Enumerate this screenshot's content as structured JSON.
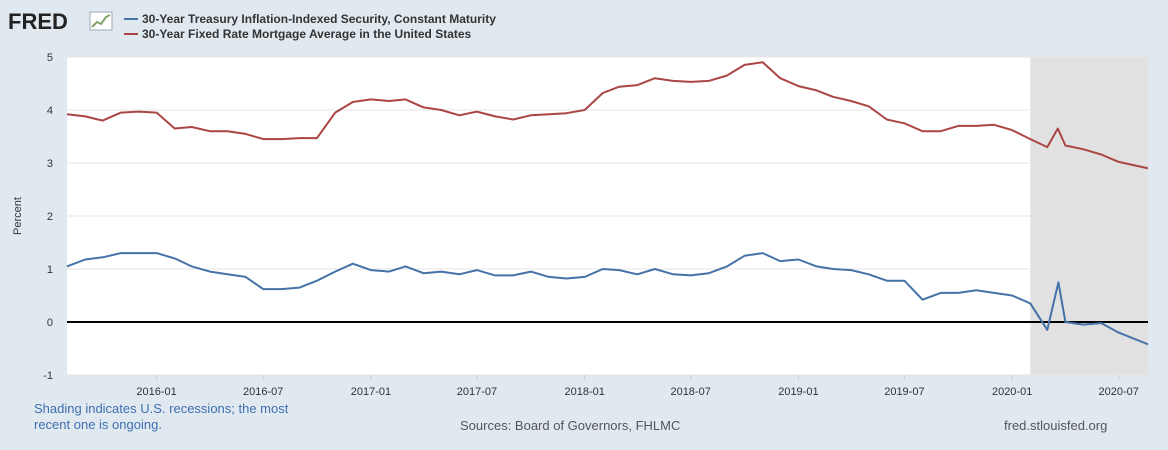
{
  "logo": {
    "text": "FRED"
  },
  "chart_data": {
    "type": "line",
    "title": "",
    "xlabel": "",
    "ylabel": "Percent",
    "ylim": [
      -1,
      5
    ],
    "xlim": [
      "2015-08-01",
      "2020-08-20"
    ],
    "yticks": [
      -1,
      0,
      1,
      2,
      3,
      4,
      5
    ],
    "xticks": [
      "2016-01",
      "2016-07",
      "2017-01",
      "2017-07",
      "2018-01",
      "2018-07",
      "2019-01",
      "2019-07",
      "2020-01",
      "2020-07"
    ],
    "recession": {
      "start": "2020-02-01",
      "end": "2020-08-20",
      "label": "Shading indicates U.S. recessions; the most recent one is ongoing."
    },
    "zero_line": 0,
    "series": [
      {
        "name": "30-Year Treasury Inflation-Indexed Security, Constant Maturity",
        "color": "#4572a7",
        "points": [
          [
            "2015-08-01",
            1.05
          ],
          [
            "2015-09-01",
            1.18
          ],
          [
            "2015-10-01",
            1.22
          ],
          [
            "2015-11-01",
            1.3
          ],
          [
            "2015-12-01",
            1.3
          ],
          [
            "2016-01-01",
            1.3
          ],
          [
            "2016-02-01",
            1.2
          ],
          [
            "2016-03-01",
            1.05
          ],
          [
            "2016-04-01",
            0.95
          ],
          [
            "2016-05-01",
            0.9
          ],
          [
            "2016-06-01",
            0.85
          ],
          [
            "2016-07-01",
            0.62
          ],
          [
            "2016-08-01",
            0.62
          ],
          [
            "2016-09-01",
            0.65
          ],
          [
            "2016-10-01",
            0.78
          ],
          [
            "2016-11-01",
            0.95
          ],
          [
            "2016-12-01",
            1.1
          ],
          [
            "2017-01-01",
            0.98
          ],
          [
            "2017-02-01",
            0.95
          ],
          [
            "2017-03-01",
            1.05
          ],
          [
            "2017-04-01",
            0.92
          ],
          [
            "2017-05-01",
            0.95
          ],
          [
            "2017-06-01",
            0.9
          ],
          [
            "2017-07-01",
            0.98
          ],
          [
            "2017-08-01",
            0.88
          ],
          [
            "2017-09-01",
            0.88
          ],
          [
            "2017-10-01",
            0.95
          ],
          [
            "2017-11-01",
            0.85
          ],
          [
            "2017-12-01",
            0.82
          ],
          [
            "2018-01-01",
            0.85
          ],
          [
            "2018-02-01",
            1.0
          ],
          [
            "2018-03-01",
            0.98
          ],
          [
            "2018-04-01",
            0.9
          ],
          [
            "2018-05-01",
            1.0
          ],
          [
            "2018-06-01",
            0.9
          ],
          [
            "2018-07-01",
            0.88
          ],
          [
            "2018-08-01",
            0.92
          ],
          [
            "2018-09-01",
            1.05
          ],
          [
            "2018-10-01",
            1.25
          ],
          [
            "2018-11-01",
            1.3
          ],
          [
            "2018-12-01",
            1.15
          ],
          [
            "2019-01-01",
            1.18
          ],
          [
            "2019-02-01",
            1.05
          ],
          [
            "2019-03-01",
            1.0
          ],
          [
            "2019-04-01",
            0.98
          ],
          [
            "2019-05-01",
            0.9
          ],
          [
            "2019-06-01",
            0.78
          ],
          [
            "2019-07-01",
            0.78
          ],
          [
            "2019-08-01",
            0.42
          ],
          [
            "2019-09-01",
            0.55
          ],
          [
            "2019-10-01",
            0.55
          ],
          [
            "2019-11-01",
            0.6
          ],
          [
            "2019-12-01",
            0.55
          ],
          [
            "2020-01-01",
            0.5
          ],
          [
            "2020-02-01",
            0.35
          ],
          [
            "2020-03-01",
            -0.15
          ],
          [
            "2020-03-20",
            0.75
          ],
          [
            "2020-04-01",
            0.0
          ],
          [
            "2020-05-01",
            -0.05
          ],
          [
            "2020-06-01",
            -0.02
          ],
          [
            "2020-07-01",
            -0.2
          ],
          [
            "2020-08-20",
            -0.42
          ]
        ]
      },
      {
        "name": "30-Year Fixed Rate Mortgage Average in the United States",
        "color": "#aa4643",
        "points": [
          [
            "2015-08-01",
            3.92
          ],
          [
            "2015-09-01",
            3.88
          ],
          [
            "2015-10-01",
            3.8
          ],
          [
            "2015-11-01",
            3.95
          ],
          [
            "2015-12-01",
            3.97
          ],
          [
            "2016-01-01",
            3.95
          ],
          [
            "2016-02-01",
            3.65
          ],
          [
            "2016-03-01",
            3.68
          ],
          [
            "2016-04-01",
            3.6
          ],
          [
            "2016-05-01",
            3.6
          ],
          [
            "2016-06-01",
            3.55
          ],
          [
            "2016-07-01",
            3.45
          ],
          [
            "2016-08-01",
            3.45
          ],
          [
            "2016-09-01",
            3.47
          ],
          [
            "2016-10-01",
            3.47
          ],
          [
            "2016-11-01",
            3.95
          ],
          [
            "2016-12-01",
            4.15
          ],
          [
            "2017-01-01",
            4.2
          ],
          [
            "2017-02-01",
            4.17
          ],
          [
            "2017-03-01",
            4.2
          ],
          [
            "2017-04-01",
            4.05
          ],
          [
            "2017-05-01",
            4.0
          ],
          [
            "2017-06-01",
            3.9
          ],
          [
            "2017-07-01",
            3.97
          ],
          [
            "2017-08-01",
            3.88
          ],
          [
            "2017-09-01",
            3.82
          ],
          [
            "2017-10-01",
            3.9
          ],
          [
            "2017-11-01",
            3.92
          ],
          [
            "2017-12-01",
            3.94
          ],
          [
            "2018-01-01",
            4.0
          ],
          [
            "2018-02-01",
            4.32
          ],
          [
            "2018-03-01",
            4.44
          ],
          [
            "2018-04-01",
            4.47
          ],
          [
            "2018-05-01",
            4.6
          ],
          [
            "2018-06-01",
            4.55
          ],
          [
            "2018-07-01",
            4.53
          ],
          [
            "2018-08-01",
            4.55
          ],
          [
            "2018-09-01",
            4.65
          ],
          [
            "2018-10-01",
            4.85
          ],
          [
            "2018-11-01",
            4.9
          ],
          [
            "2018-12-01",
            4.6
          ],
          [
            "2019-01-01",
            4.45
          ],
          [
            "2019-02-01",
            4.37
          ],
          [
            "2019-03-01",
            4.25
          ],
          [
            "2019-04-01",
            4.17
          ],
          [
            "2019-05-01",
            4.07
          ],
          [
            "2019-06-01",
            3.82
          ],
          [
            "2019-07-01",
            3.75
          ],
          [
            "2019-08-01",
            3.6
          ],
          [
            "2019-09-01",
            3.6
          ],
          [
            "2019-10-01",
            3.7
          ],
          [
            "2019-11-01",
            3.7
          ],
          [
            "2019-12-01",
            3.72
          ],
          [
            "2020-01-01",
            3.62
          ],
          [
            "2020-02-01",
            3.45
          ],
          [
            "2020-03-01",
            3.3
          ],
          [
            "2020-03-19",
            3.65
          ],
          [
            "2020-04-01",
            3.33
          ],
          [
            "2020-05-01",
            3.26
          ],
          [
            "2020-06-01",
            3.16
          ],
          [
            "2020-07-01",
            3.02
          ],
          [
            "2020-08-20",
            2.9
          ]
        ]
      }
    ]
  },
  "footer": {
    "recession_note": "Shading indicates U.S. recessions; the most recent one is ongoing.",
    "sources": "Sources: Board of Governors, FHLMC",
    "site": "fred.stlouisfed.org"
  }
}
